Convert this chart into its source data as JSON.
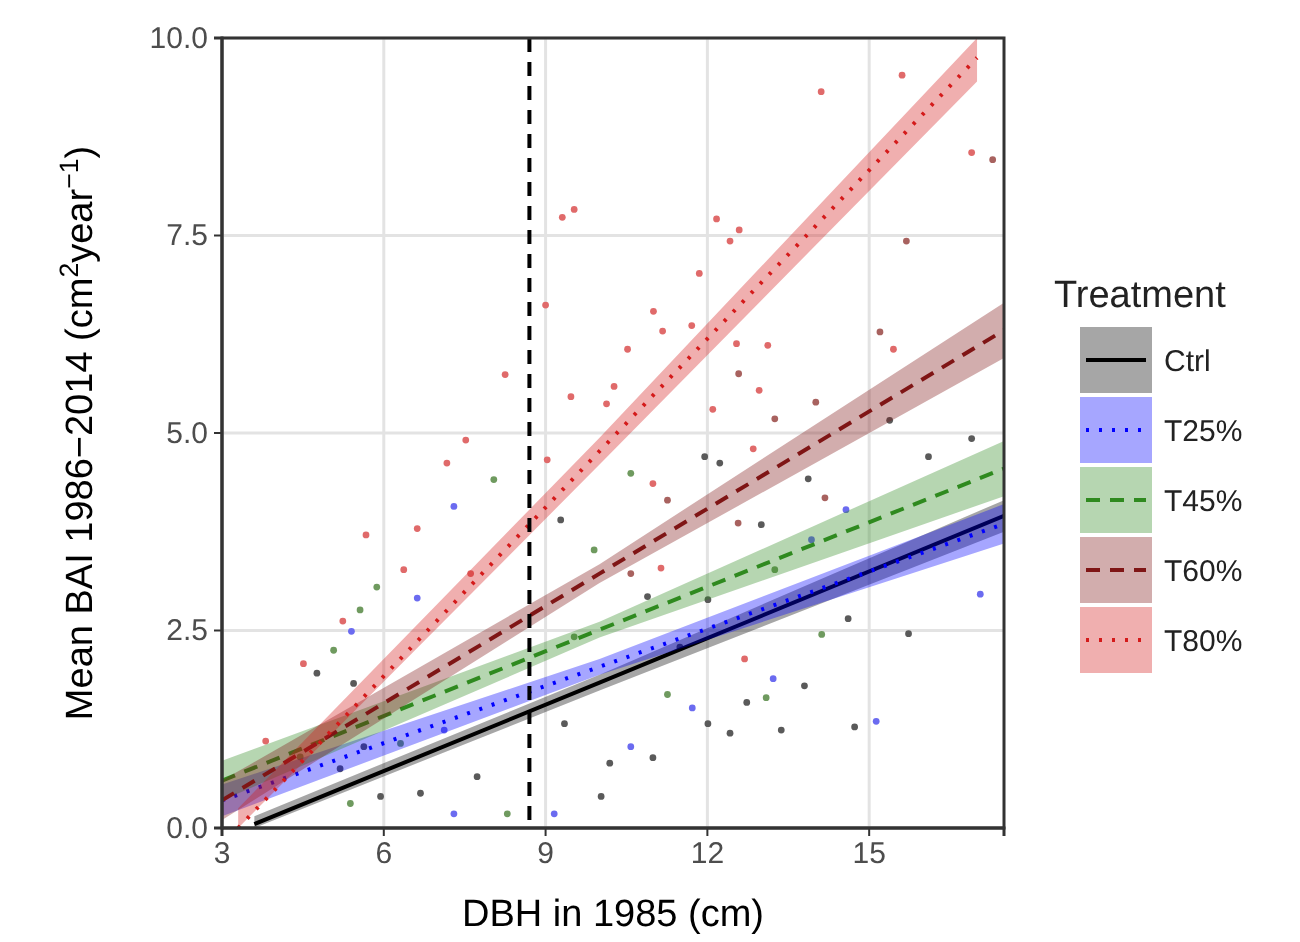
{
  "chart_data": {
    "type": "scatter",
    "xlabel": "DBH in 1985 (cm)",
    "ylabel": "Mean BAI 1986−2014 (cm$^{2}$year$^{−1}$)",
    "legend_title": "Treatment",
    "legend": "right",
    "grid": true,
    "marker": "circle",
    "xlim": [
      3,
      17.5
    ],
    "xticks": [
      3,
      6,
      9,
      12,
      15
    ],
    "ylim": [
      0,
      10
    ],
    "yticks": [
      {
        "value": 0,
        "label": "0.0"
      },
      2.5,
      {
        "value": 5,
        "label": "5.0"
      },
      7.5,
      {
        "value": 10,
        "label": "10.0"
      }
    ],
    "ref_lines": [
      {
        "axis": "x",
        "value": 8.7,
        "label": null,
        "color": "#000000",
        "line_style": "dashed"
      }
    ],
    "series": [
      {
        "color": "#5a5a5a",
        "x": [
          5.44,
          4.76,
          5.19,
          5.94,
          6.68,
          7.73,
          9.35,
          10.03,
          5.63,
          9.28,
          15.38,
          16.9,
          16.1,
          11.95,
          12.23,
          13.87,
          13.0,
          15.73,
          14.61,
          13.8,
          14.73,
          13.37,
          12.42,
          12.73,
          12.01,
          10.99,
          10.19,
          11.49,
          10.89,
          12.01
        ],
        "values": [
          1.83,
          1.96,
          0.75,
          0.4,
          0.44,
          0.65,
          1.32,
          0.4,
          1.03,
          3.9,
          5.16,
          4.93,
          4.7,
          4.7,
          4.62,
          4.42,
          3.84,
          2.46,
          2.65,
          1.8,
          1.28,
          1.24,
          1.2,
          1.59,
          1.32,
          0.89,
          0.82,
          2.29,
          2.93,
          2.89
        ]
      },
      {
        "color": "#6b6bf0",
        "x": [
          7.3,
          6.62,
          5.4,
          7.3,
          9.16,
          7.12,
          14.57,
          13.93,
          17.06,
          15.13,
          13.22,
          11.72,
          10.58
        ],
        "values": [
          4.07,
          2.91,
          2.49,
          0.18,
          0.18,
          1.24,
          4.03,
          3.65,
          2.96,
          1.35,
          1.89,
          1.52,
          1.03
        ]
      },
      {
        "color": "#6f9a5f",
        "x": [
          5.87,
          5.56,
          8.04,
          5.07,
          8.29,
          6.31,
          9.53,
          9.9,
          4.45,
          5.38,
          14.12,
          13.09,
          11.26,
          13.25,
          10.58
        ],
        "values": [
          3.05,
          2.76,
          4.41,
          2.25,
          0.18,
          1.07,
          2.42,
          3.52,
          0.9,
          0.31,
          2.45,
          1.65,
          1.69,
          3.27,
          4.49
        ]
      },
      {
        "color": "#a8625f",
        "x": [
          17.29,
          15.69,
          15.2,
          14.01,
          13.25,
          12.58,
          14.18,
          10.58,
          11.26,
          12.57
        ],
        "values": [
          8.46,
          7.43,
          6.28,
          5.39,
          5.18,
          5.75,
          4.18,
          3.22,
          4.15,
          3.86
        ]
      },
      {
        "color": "#e06a6a",
        "x": [
          9.31,
          9.53,
          9.0,
          8.25,
          9.47,
          10.13,
          14.11,
          15.61,
          16.9,
          12.17,
          12.42,
          12.59,
          11.0,
          11.85,
          11.17,
          11.71,
          12.54,
          13.12,
          10.52,
          15.45,
          10.27,
          12.96,
          12.1,
          5.67,
          4.51,
          3.81,
          6.62,
          6.37,
          7.17,
          7.52,
          5.24,
          7.61,
          9.03,
          12.69,
          11.14,
          12.85,
          10.99
        ],
        "values": [
          7.73,
          7.83,
          6.62,
          5.74,
          5.46,
          5.37,
          9.32,
          9.53,
          8.55,
          7.71,
          7.43,
          7.57,
          6.54,
          7.02,
          6.29,
          6.36,
          6.13,
          6.11,
          6.06,
          6.06,
          5.59,
          5.54,
          5.3,
          3.71,
          2.08,
          1.1,
          3.79,
          3.27,
          4.62,
          4.91,
          2.62,
          3.22,
          4.66,
          2.14,
          3.29,
          4.8,
          4.36
        ]
      },
      {
        "type": "line",
        "name": "Ctrl",
        "marker": "none",
        "color": "#000000",
        "line_style": "solid",
        "x": [
          3.6,
          10,
          17.5
        ],
        "values": [
          0.05,
          1.84,
          3.95
        ],
        "lower": [
          0,
          1.74,
          3.75
        ],
        "upper": [
          0.15,
          1.94,
          4.15
        ]
      },
      {
        "type": "line",
        "name": "T25%",
        "marker": "none",
        "color": "#0000ff",
        "line_style": "dotted",
        "x": [
          3,
          10,
          17.5
        ],
        "values": [
          0.35,
          2.04,
          3.85
        ],
        "lower": [
          0.15,
          1.94,
          3.6
        ],
        "upper": [
          0.55,
          2.14,
          4.1
        ]
      },
      {
        "type": "line",
        "name": "T45%",
        "marker": "none",
        "color": "#2f8a1f",
        "line_style": "dashed",
        "x": [
          3,
          10,
          17.5
        ],
        "values": [
          0.6,
          2.51,
          4.55
        ],
        "lower": [
          0.35,
          2.41,
          4.2
        ],
        "upper": [
          0.85,
          2.61,
          4.9
        ]
      },
      {
        "type": "line",
        "name": "T60%",
        "marker": "none",
        "color": "#7f1515",
        "line_style": "dashed",
        "x": [
          3,
          10,
          17.5
        ],
        "values": [
          0.35,
          3.22,
          6.3
        ],
        "lower": [
          0.1,
          3.1,
          5.95
        ],
        "upper": [
          0.6,
          3.34,
          6.65
        ]
      },
      {
        "type": "line",
        "name": "T80%",
        "marker": "none",
        "color": "#d41a1a",
        "line_style": "dotted",
        "x": [
          3.3,
          10,
          17
        ],
        "values": [
          0,
          4.77,
          9.75
        ],
        "lower": [
          0,
          4.6,
          9.45
        ],
        "upper": [
          0.25,
          4.94,
          10
        ]
      }
    ]
  }
}
